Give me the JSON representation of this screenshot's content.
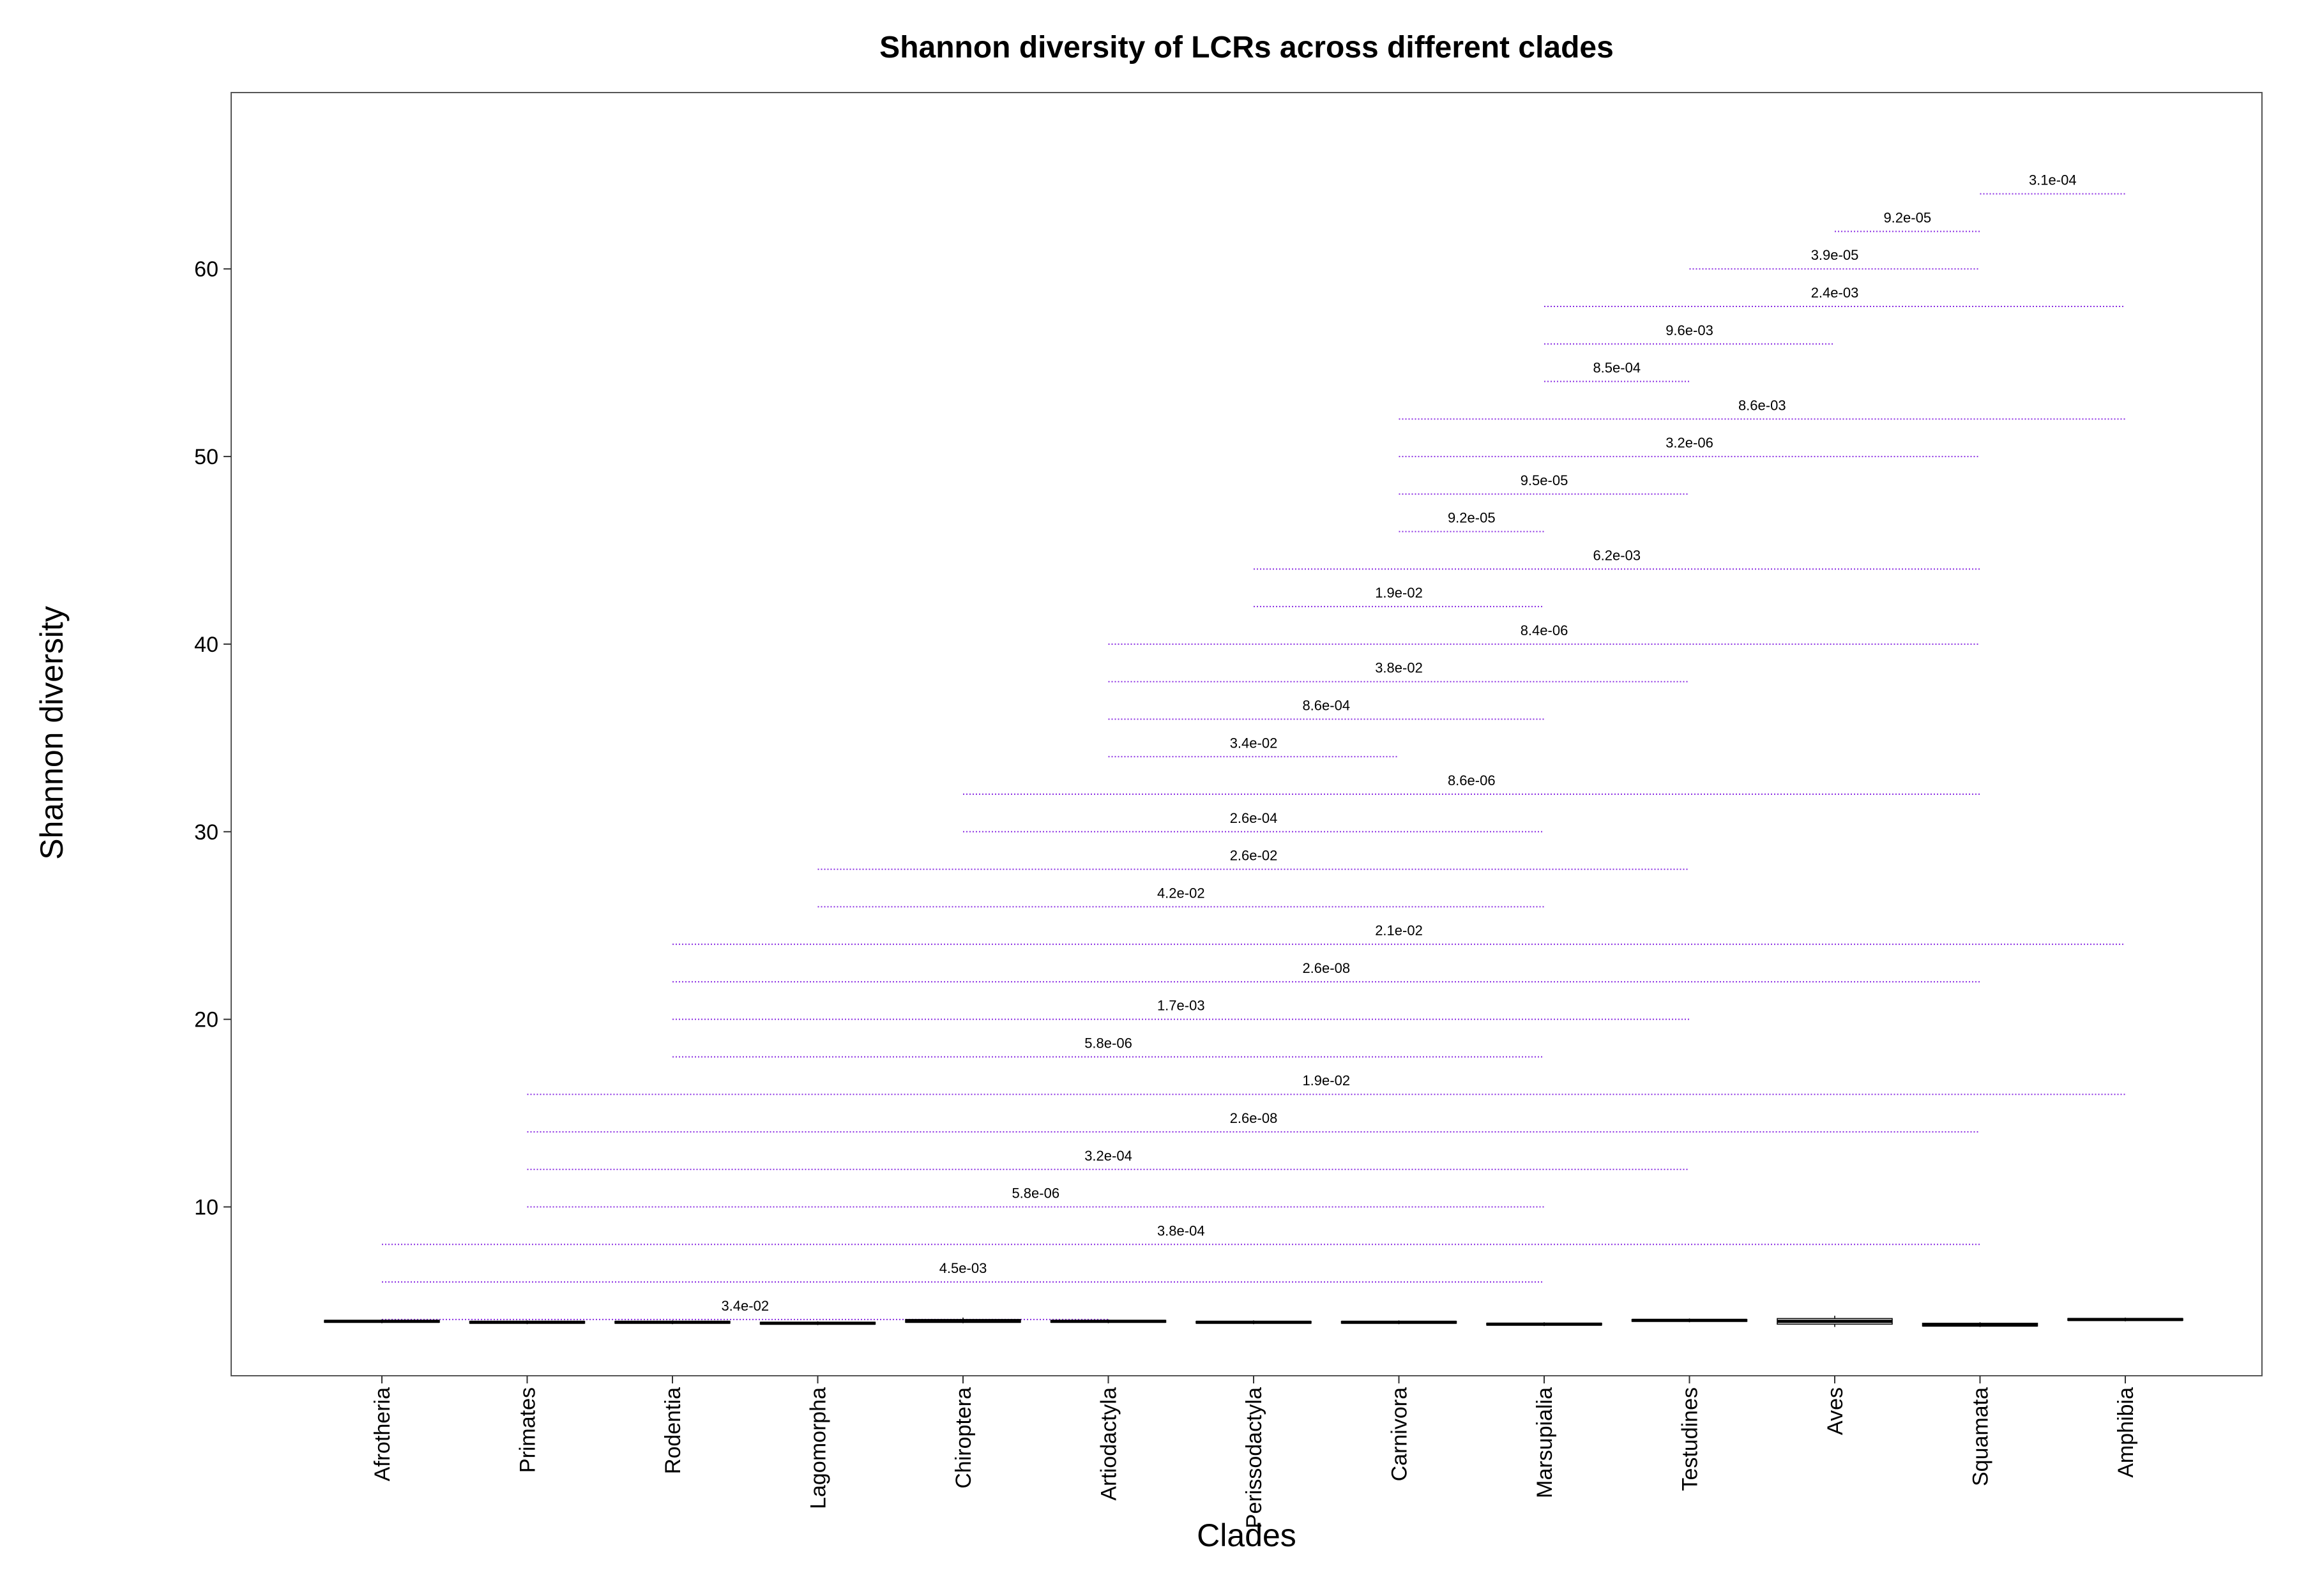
{
  "chart_data": {
    "type": "box",
    "title": "Shannon diversity of LCRs across different clades",
    "xlabel": "Clades",
    "ylabel": "Shannon diversity",
    "categories": [
      "Afrotheria",
      "Primates",
      "Rodentia",
      "Lagomorpha",
      "Chiroptera",
      "Artiodactyla",
      "Perissodactyla",
      "Carnivora",
      "Marsupialia",
      "Testudines",
      "Aves",
      "Squamata",
      "Amphibia"
    ],
    "yticks": [
      10,
      20,
      30,
      40,
      50,
      60
    ],
    "ylim": [
      1.0,
      69.4
    ],
    "grid": false,
    "boxes": [
      {
        "group": "Afrotheria",
        "median": 3.9,
        "q1": 3.85,
        "q3": 3.95,
        "whisker_low": 3.8,
        "whisker_high": 4.0
      },
      {
        "group": "Primates",
        "median": 3.85,
        "q1": 3.8,
        "q3": 3.9,
        "whisker_low": 3.75,
        "whisker_high": 3.95
      },
      {
        "group": "Rodentia",
        "median": 3.85,
        "q1": 3.8,
        "q3": 3.9,
        "whisker_low": 3.75,
        "whisker_high": 3.95
      },
      {
        "group": "Lagomorpha",
        "median": 3.8,
        "q1": 3.75,
        "q3": 3.85,
        "whisker_low": 3.7,
        "whisker_high": 3.9
      },
      {
        "group": "Chiroptera",
        "median": 3.9,
        "q1": 3.85,
        "q3": 4.0,
        "whisker_low": 3.8,
        "whisker_high": 4.1
      },
      {
        "group": "Artiodactyla",
        "median": 3.9,
        "q1": 3.85,
        "q3": 3.95,
        "whisker_low": 3.8,
        "whisker_high": 4.0
      },
      {
        "group": "Perissodactyla",
        "median": 3.85,
        "q1": 3.8,
        "q3": 3.9,
        "whisker_low": 3.75,
        "whisker_high": 3.95
      },
      {
        "group": "Carnivora",
        "median": 3.85,
        "q1": 3.8,
        "q3": 3.9,
        "whisker_low": 3.75,
        "whisker_high": 3.95
      },
      {
        "group": "Marsupialia",
        "median": 3.75,
        "q1": 3.7,
        "q3": 3.8,
        "whisker_low": 3.65,
        "whisker_high": 3.85
      },
      {
        "group": "Testudines",
        "median": 3.95,
        "q1": 3.9,
        "q3": 4.0,
        "whisker_low": 3.85,
        "whisker_high": 4.05
      },
      {
        "group": "Aves",
        "median": 3.9,
        "q1": 3.75,
        "q3": 4.05,
        "whisker_low": 3.6,
        "whisker_high": 4.2
      },
      {
        "group": "Squamata",
        "median": 3.7,
        "q1": 3.65,
        "q3": 3.8,
        "whisker_low": 3.6,
        "whisker_high": 3.85
      },
      {
        "group": "Amphibia",
        "median": 4.0,
        "q1": 3.95,
        "q3": 4.05,
        "whisker_low": 3.9,
        "whisker_high": 4.1
      }
    ],
    "comparisons": [
      {
        "group1": "Afrotheria",
        "group2": "Squamata",
        "y": 8,
        "p": "3.8e-04"
      },
      {
        "group1": "Afrotheria",
        "group2": "Marsupialia",
        "y": 6,
        "p": "4.5e-03"
      },
      {
        "group1": "Afrotheria",
        "group2": "Artiodactyla",
        "y": 4,
        "p": "3.4e-02"
      },
      {
        "group1": "Primates",
        "group2": "Amphibia",
        "y": 16,
        "p": "1.9e-02"
      },
      {
        "group1": "Primates",
        "group2": "Squamata",
        "y": 14,
        "p": "2.6e-08"
      },
      {
        "group1": "Primates",
        "group2": "Testudines",
        "y": 12,
        "p": "3.2e-04"
      },
      {
        "group1": "Primates",
        "group2": "Marsupialia",
        "y": 10,
        "p": "5.8e-06"
      },
      {
        "group1": "Rodentia",
        "group2": "Amphibia",
        "y": 24,
        "p": "2.1e-02"
      },
      {
        "group1": "Rodentia",
        "group2": "Squamata",
        "y": 22,
        "p": "2.6e-08"
      },
      {
        "group1": "Rodentia",
        "group2": "Testudines",
        "y": 20,
        "p": "1.7e-03"
      },
      {
        "group1": "Rodentia",
        "group2": "Marsupialia",
        "y": 18,
        "p": "5.8e-06"
      },
      {
        "group1": "Lagomorpha",
        "group2": "Testudines",
        "y": 28,
        "p": "2.6e-02"
      },
      {
        "group1": "Lagomorpha",
        "group2": "Marsupialia",
        "y": 26,
        "p": "4.2e-02"
      },
      {
        "group1": "Chiroptera",
        "group2": "Squamata",
        "y": 32,
        "p": "8.6e-06"
      },
      {
        "group1": "Chiroptera",
        "group2": "Marsupialia",
        "y": 30,
        "p": "2.6e-04"
      },
      {
        "group1": "Artiodactyla",
        "group2": "Squamata",
        "y": 40,
        "p": "8.4e-06"
      },
      {
        "group1": "Artiodactyla",
        "group2": "Testudines",
        "y": 38,
        "p": "3.8e-02"
      },
      {
        "group1": "Artiodactyla",
        "group2": "Marsupialia",
        "y": 36,
        "p": "8.6e-04"
      },
      {
        "group1": "Artiodactyla",
        "group2": "Carnivora",
        "y": 34,
        "p": "3.4e-02"
      },
      {
        "group1": "Perissodactyla",
        "group2": "Squamata",
        "y": 44,
        "p": "6.2e-03"
      },
      {
        "group1": "Perissodactyla",
        "group2": "Marsupialia",
        "y": 42,
        "p": "1.9e-02"
      },
      {
        "group1": "Carnivora",
        "group2": "Amphibia",
        "y": 52,
        "p": "8.6e-03"
      },
      {
        "group1": "Carnivora",
        "group2": "Squamata",
        "y": 50,
        "p": "3.2e-06"
      },
      {
        "group1": "Carnivora",
        "group2": "Testudines",
        "y": 48,
        "p": "9.5e-05"
      },
      {
        "group1": "Carnivora",
        "group2": "Marsupialia",
        "y": 46,
        "p": "9.2e-05"
      },
      {
        "group1": "Marsupialia",
        "group2": "Amphibia",
        "y": 58,
        "p": "2.4e-03"
      },
      {
        "group1": "Marsupialia",
        "group2": "Aves",
        "y": 56,
        "p": "9.6e-03"
      },
      {
        "group1": "Marsupialia",
        "group2": "Testudines",
        "y": 54,
        "p": "8.5e-04"
      },
      {
        "group1": "Testudines",
        "group2": "Squamata",
        "y": 60,
        "p": "3.9e-05"
      },
      {
        "group1": "Aves",
        "group2": "Squamata",
        "y": 62,
        "p": "9.2e-05"
      },
      {
        "group1": "Squamata",
        "group2": "Amphibia",
        "y": 64,
        "p": "3.1e-04"
      }
    ],
    "colors": {
      "bracket": "#8a2be2",
      "box_fill": "#ffffff",
      "box_stroke": "#000000",
      "panel_border": "#555555"
    }
  }
}
